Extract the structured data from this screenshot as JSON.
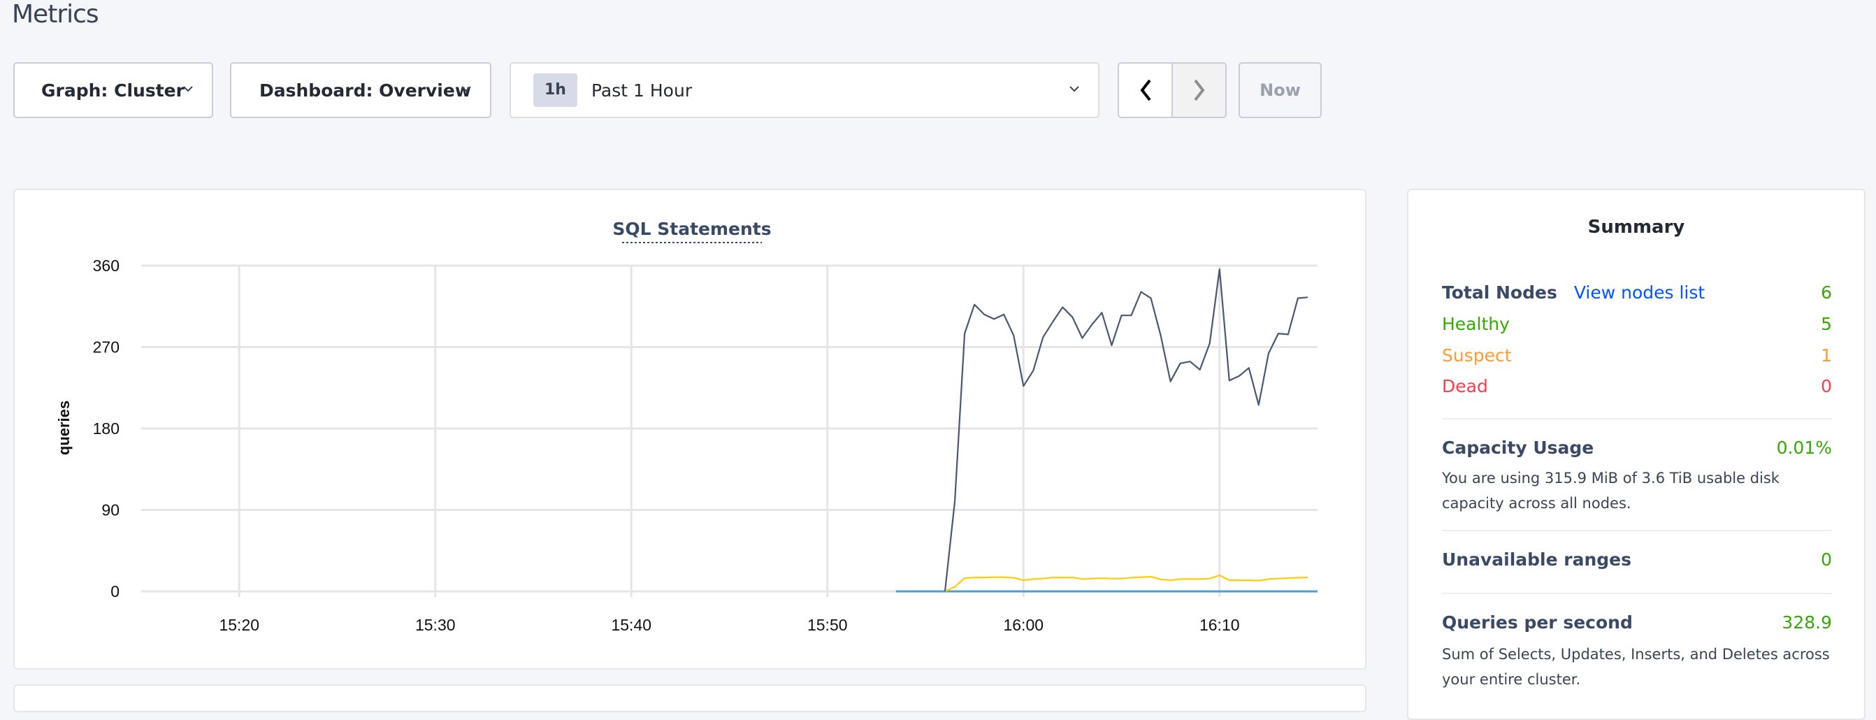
{
  "page": {
    "title": "Metrics"
  },
  "controls": {
    "graph_label": "Graph: Cluster",
    "dashboard_label": "Dashboard: Overview",
    "time_badge": "1h",
    "time_label": "Past 1 Hour",
    "now_label": "Now"
  },
  "chart_data": {
    "type": "line",
    "title": "SQL Statements",
    "ylabel": "queries",
    "xlabel": "",
    "ylim": [
      0,
      360
    ],
    "yticks": [
      "0",
      "90",
      "180",
      "270",
      "360"
    ],
    "xlim": [
      "15:15",
      "16:15"
    ],
    "xticks": [
      "15:20",
      "15:30",
      "15:40",
      "15:50",
      "16:00",
      "16:10"
    ],
    "grid": true,
    "series": [
      {
        "color": "#475872",
        "start": "15:56:00",
        "interval_s": 30,
        "values": [
          0,
          100,
          285,
          317,
          306,
          301,
          306,
          283,
          227,
          244,
          281,
          298,
          314,
          303,
          280,
          295,
          308,
          272,
          305,
          305,
          331,
          324,
          283,
          232,
          252,
          254,
          245,
          274,
          356,
          233,
          238,
          247,
          206,
          263,
          285,
          284,
          324,
          325
        ]
      },
      {
        "color": "#ffcd02",
        "start": "15:56:00",
        "interval_s": 30,
        "values": [
          0,
          5,
          14.6,
          15.4,
          15.4,
          15.7,
          15.7,
          15,
          12.3,
          13.6,
          14.1,
          15.4,
          15.4,
          15.4,
          13.6,
          14.1,
          14.6,
          14.1,
          14.1,
          15.2,
          15.7,
          16.2,
          13.3,
          12.3,
          13.6,
          13.6,
          13.6,
          14.1,
          17.8,
          12.3,
          12.3,
          12.3,
          11.8,
          13.6,
          14.1,
          14.6,
          15.2,
          15.4
        ]
      },
      {
        "color": "#4a9fd5",
        "start": "15:53:30",
        "interval_s": 30,
        "values": [
          0,
          0,
          0,
          0,
          0,
          0,
          0,
          0,
          0,
          0,
          0,
          0,
          0,
          0,
          0,
          0,
          0,
          0,
          0,
          0,
          0,
          0,
          0,
          0,
          0,
          0,
          0,
          0,
          0,
          0,
          0,
          0,
          0,
          0,
          0,
          0,
          0,
          0,
          0,
          0,
          0,
          0,
          0,
          0
        ]
      }
    ]
  },
  "summary": {
    "title": "Summary",
    "total_nodes_label": "Total Nodes",
    "view_nodes_link": "View nodes list",
    "total_nodes": "6",
    "healthy_label": "Healthy",
    "healthy": "5",
    "suspect_label": "Suspect",
    "suspect": "1",
    "dead_label": "Dead",
    "dead": "0",
    "capacity_label": "Capacity Usage",
    "capacity": "0.01%",
    "capacity_desc": "You are using 315.9 MiB of 3.6 TiB usable disk capacity across all nodes.",
    "unavailable_label": "Unavailable ranges",
    "unavailable": "0",
    "qps_label": "Queries per second",
    "qps": "328.9",
    "qps_desc": "Sum of Selects, Updates, Inserts, and Deletes across your entire cluster."
  },
  "colors": {
    "healthy": "#37a806",
    "suspect": "#ff9b2f",
    "dead": "#ff3b4e",
    "link": "#0055ff"
  }
}
